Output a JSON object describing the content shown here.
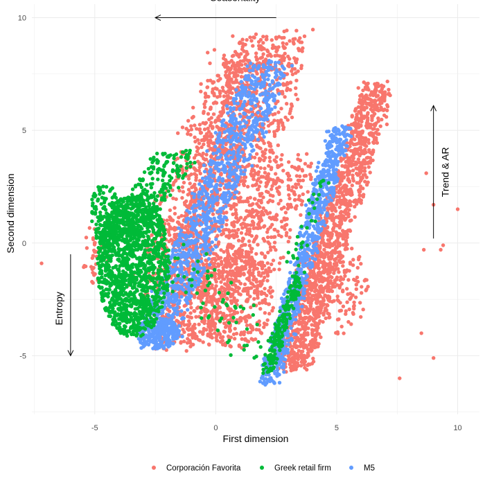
{
  "chart_data": {
    "type": "scatter",
    "title": "",
    "xlabel": "First dimension",
    "ylabel": "Second dimension",
    "xlim": [
      -7.6,
      10.9
    ],
    "ylim": [
      -7.6,
      10.6
    ],
    "x_ticks": [
      -5,
      0,
      5,
      10
    ],
    "y_ticks": [
      -5,
      0,
      5,
      10
    ],
    "grid": true,
    "legend_position": "bottom",
    "series": [
      {
        "name": "Corporación Favorita",
        "color": "#F8766D",
        "regions": [
          {
            "x_range": [
              -3.5,
              3.2
            ],
            "y_range": [
              -5.2,
              10.0
            ]
          },
          {
            "x_range": [
              2.8,
              7.2
            ],
            "y_range": [
              -5.8,
              7.2
            ]
          },
          {
            "x_range": [
              -5.5,
              -3.0
            ],
            "y_range": [
              -3.0,
              2.5
            ]
          }
        ],
        "outliers": [
          {
            "x": -7.2,
            "y": -0.9
          },
          {
            "x": 9.0,
            "y": 1.7
          },
          {
            "x": 9.4,
            "y": -0.1
          },
          {
            "x": 10.0,
            "y": 1.5
          },
          {
            "x": 8.5,
            "y": -4.0
          },
          {
            "x": 9.0,
            "y": -5.1
          },
          {
            "x": 8.7,
            "y": 3.1
          },
          {
            "x": 7.6,
            "y": -6.0
          },
          {
            "x": 9.3,
            "y": -0.3
          },
          {
            "x": 8.6,
            "y": -0.3
          }
        ]
      },
      {
        "name": "Greek retail firm",
        "color": "#00BA38",
        "regions": [
          {
            "x_range": [
              -5.1,
              -1.5
            ],
            "y_range": [
              -4.3,
              4.2
            ]
          },
          {
            "x_range": [
              1.8,
              4.6
            ],
            "y_range": [
              -6.0,
              0.0
            ]
          }
        ]
      },
      {
        "name": "M5",
        "color": "#619CFF",
        "regions": [
          {
            "x_range": [
              -3.0,
              2.6
            ],
            "y_range": [
              -5.0,
              8.2
            ]
          },
          {
            "x_range": [
              2.0,
              5.6
            ],
            "y_range": [
              -6.8,
              5.3
            ]
          }
        ]
      }
    ],
    "annotations": [
      {
        "text": "Seasonality",
        "arrow_from": [
          2.5,
          10.0
        ],
        "arrow_to": [
          -2.5,
          10.0
        ]
      },
      {
        "text": "Trend & AR",
        "arrow_from": [
          9.0,
          0.2
        ],
        "arrow_to": [
          9.0,
          6.1
        ]
      },
      {
        "text": "Entropy",
        "arrow_from": [
          -6.0,
          -0.5
        ],
        "arrow_to": [
          -6.0,
          -5.0
        ]
      }
    ]
  }
}
